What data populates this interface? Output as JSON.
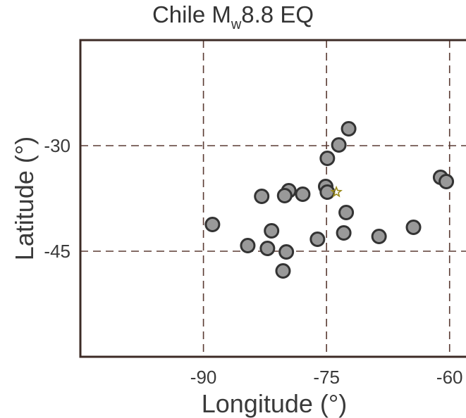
{
  "title": {
    "prefix": "Chile M",
    "subscript": "w",
    "suffix": "8.8 EQ"
  },
  "chart_data": {
    "type": "scatter",
    "title": "Chile Mw8.8 EQ",
    "xlabel": "Longitude (o)",
    "ylabel": "Latitude (o)",
    "xlim": [
      -105,
      -58
    ],
    "ylim": [
      -60,
      -15
    ],
    "xticks": [
      -90,
      -75,
      -60
    ],
    "yticks": [
      -30,
      -45
    ],
    "xtick_labels": [
      "-90",
      "-75",
      "-60"
    ],
    "ytick_labels": [
      "-30",
      "-45"
    ],
    "grid": "dashed at tick positions",
    "marker_fill": "#999999",
    "marker_edge": "#333333",
    "grid_color": "#5a3a32",
    "frame_color": "#3d2b26",
    "epicenter": {
      "x": -73.8,
      "y": -36.6,
      "marker": "star",
      "color": "#9a8a1a"
    },
    "points": [
      {
        "x": -72.3,
        "y": -27.6
      },
      {
        "x": -73.5,
        "y": -29.9
      },
      {
        "x": -74.9,
        "y": -31.8
      },
      {
        "x": -61.1,
        "y": -34.5
      },
      {
        "x": -60.4,
        "y": -35.1
      },
      {
        "x": -75.1,
        "y": -35.8
      },
      {
        "x": -79.6,
        "y": -36.4
      },
      {
        "x": -77.9,
        "y": -36.9
      },
      {
        "x": -74.9,
        "y": -36.6
      },
      {
        "x": -82.9,
        "y": -37.2
      },
      {
        "x": -80.1,
        "y": -37.1
      },
      {
        "x": -72.6,
        "y": -39.5
      },
      {
        "x": -88.9,
        "y": -41.2
      },
      {
        "x": -81.7,
        "y": -42.1
      },
      {
        "x": -72.9,
        "y": -42.4
      },
      {
        "x": -68.6,
        "y": -42.9
      },
      {
        "x": -64.4,
        "y": -41.6
      },
      {
        "x": -76.1,
        "y": -43.3
      },
      {
        "x": -84.6,
        "y": -44.2
      },
      {
        "x": -82.2,
        "y": -44.6
      },
      {
        "x": -79.9,
        "y": -45.1
      },
      {
        "x": -80.3,
        "y": -47.8
      }
    ]
  }
}
